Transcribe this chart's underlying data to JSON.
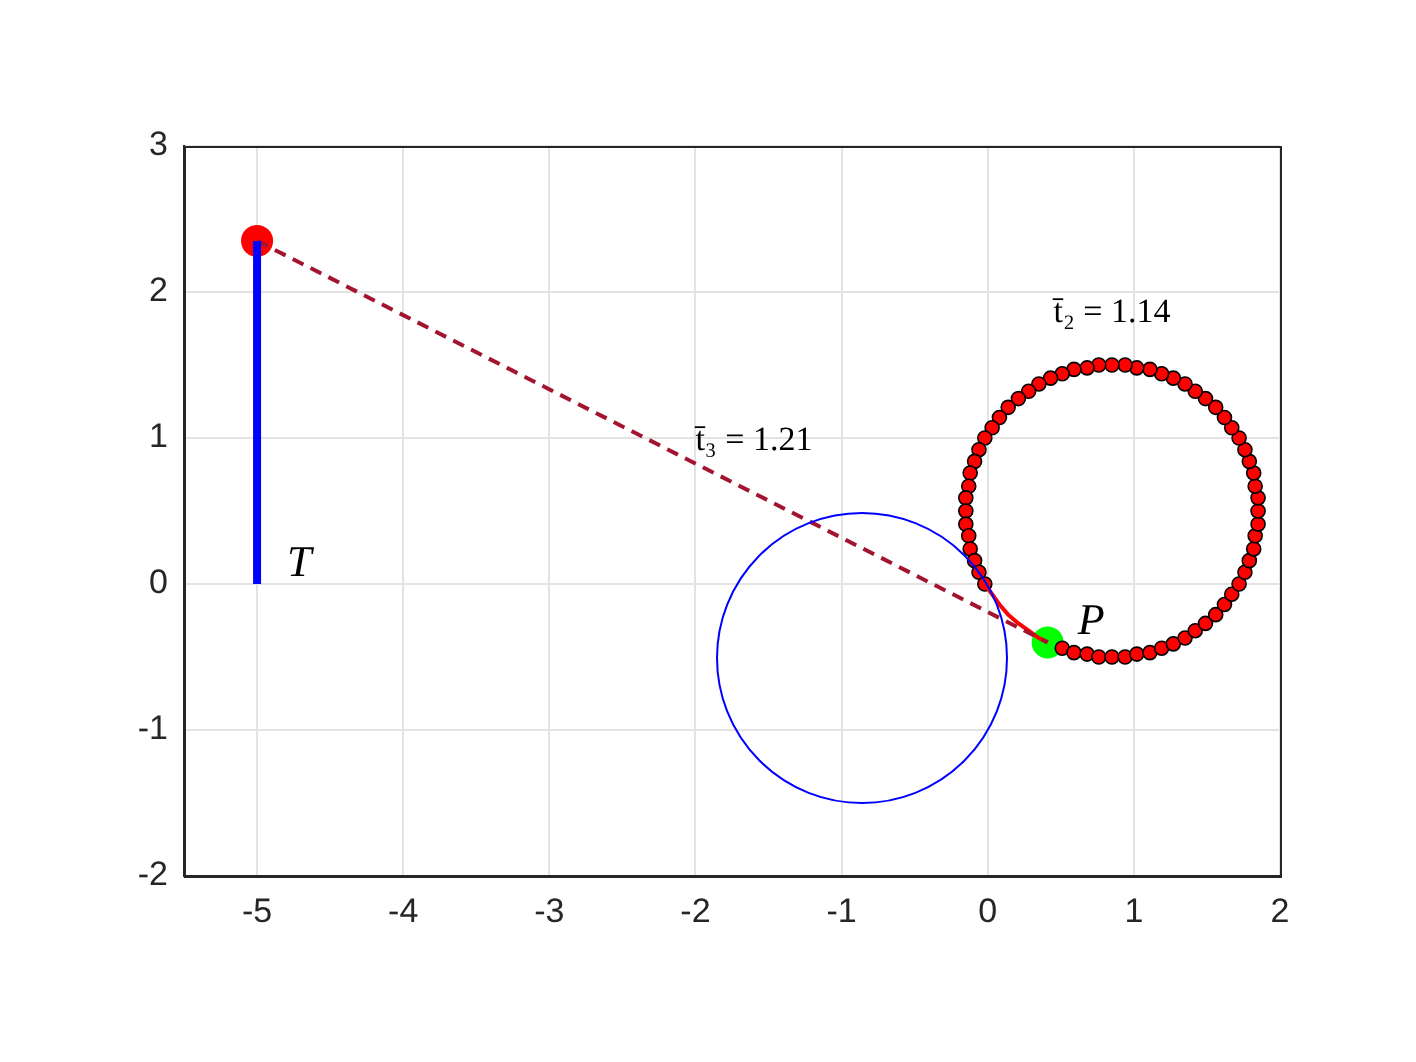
{
  "chart_data": {
    "type": "line",
    "xlim": [
      -5.5,
      2
    ],
    "ylim": [
      -2,
      3
    ],
    "xticks": [
      -5,
      -4,
      -3,
      -2,
      -1,
      0,
      1,
      2
    ],
    "yticks": [
      -2,
      -1,
      0,
      1,
      2,
      3
    ],
    "grid": true,
    "marker": "none",
    "line_style": "solid",
    "series": [
      {
        "color": "#0000ff",
        "x": [
          -5,
          -5
        ],
        "values": [
          0,
          2.35
        ]
      },
      {
        "color": "#a2142f",
        "line_style": "dashed",
        "x": [
          -5,
          0.41
        ],
        "values": [
          2.35,
          -0.4
        ]
      },
      {
        "color": "#ff0000",
        "x": [
          -0.02,
          0.03,
          0.08,
          0.14,
          0.21,
          0.28,
          0.35,
          0.41
        ],
        "values": [
          0.0,
          -0.07,
          -0.14,
          -0.21,
          -0.27,
          -0.32,
          -0.37,
          -0.4
        ]
      },
      {
        "type": "scatter",
        "color": "#ff0000",
        "marker": "circle",
        "x": [
          0.51,
          0.59,
          0.68,
          0.76,
          0.85,
          0.94,
          1.02,
          1.11,
          1.19,
          1.27,
          1.35,
          1.42,
          1.49,
          1.56,
          1.62,
          1.67,
          1.72,
          1.76,
          1.79,
          1.82,
          1.83,
          1.85,
          1.85,
          1.85,
          1.83,
          1.82,
          1.79,
          1.76,
          1.72,
          1.67,
          1.62,
          1.56,
          1.49,
          1.42,
          1.35,
          1.27,
          1.19,
          1.11,
          1.02,
          0.94,
          0.85,
          0.76,
          0.68,
          0.59,
          0.51,
          0.43,
          0.35,
          0.28,
          0.21,
          0.14,
          0.08,
          0.03,
          -0.02,
          -0.06,
          -0.09,
          -0.12,
          -0.13,
          -0.15,
          -0.15,
          -0.15,
          -0.13,
          -0.12,
          -0.09,
          -0.06,
          -0.02
        ],
        "values": [
          -0.44,
          -0.47,
          -0.48,
          -0.5,
          -0.5,
          -0.5,
          -0.48,
          -0.47,
          -0.44,
          -0.41,
          -0.37,
          -0.32,
          -0.27,
          -0.21,
          -0.14,
          -0.07,
          0.0,
          0.08,
          0.16,
          0.24,
          0.33,
          0.41,
          0.5,
          0.59,
          0.67,
          0.76,
          0.84,
          0.92,
          1.0,
          1.07,
          1.14,
          1.21,
          1.27,
          1.32,
          1.37,
          1.41,
          1.44,
          1.47,
          1.48,
          1.5,
          1.5,
          1.5,
          1.48,
          1.47,
          1.44,
          1.41,
          1.37,
          1.32,
          1.27,
          1.21,
          1.14,
          1.07,
          1.0,
          0.92,
          0.84,
          0.76,
          0.67,
          0.59,
          0.5,
          0.41,
          0.33,
          0.24,
          0.16,
          0.08,
          0.0
        ]
      },
      {
        "type": "scatter",
        "color": "#ff0000",
        "marker": "circle",
        "x": [
          -5
        ],
        "values": [
          2.35
        ]
      },
      {
        "type": "scatter",
        "color": "#00ff00",
        "marker": "circle",
        "x": [
          0.41
        ],
        "values": [
          -0.4
        ]
      }
    ],
    "annotations": [
      {
        "text": "T",
        "x": -5,
        "y": 0
      },
      {
        "text": "P",
        "x": 0.41,
        "y": -0.4
      },
      {
        "text": "t̄₃ = 1.21",
        "x": -1.6,
        "y": 0.62
      },
      {
        "text": "t̄₂ = 1.14",
        "x": 0.85,
        "y": 1.5
      }
    ]
  }
}
